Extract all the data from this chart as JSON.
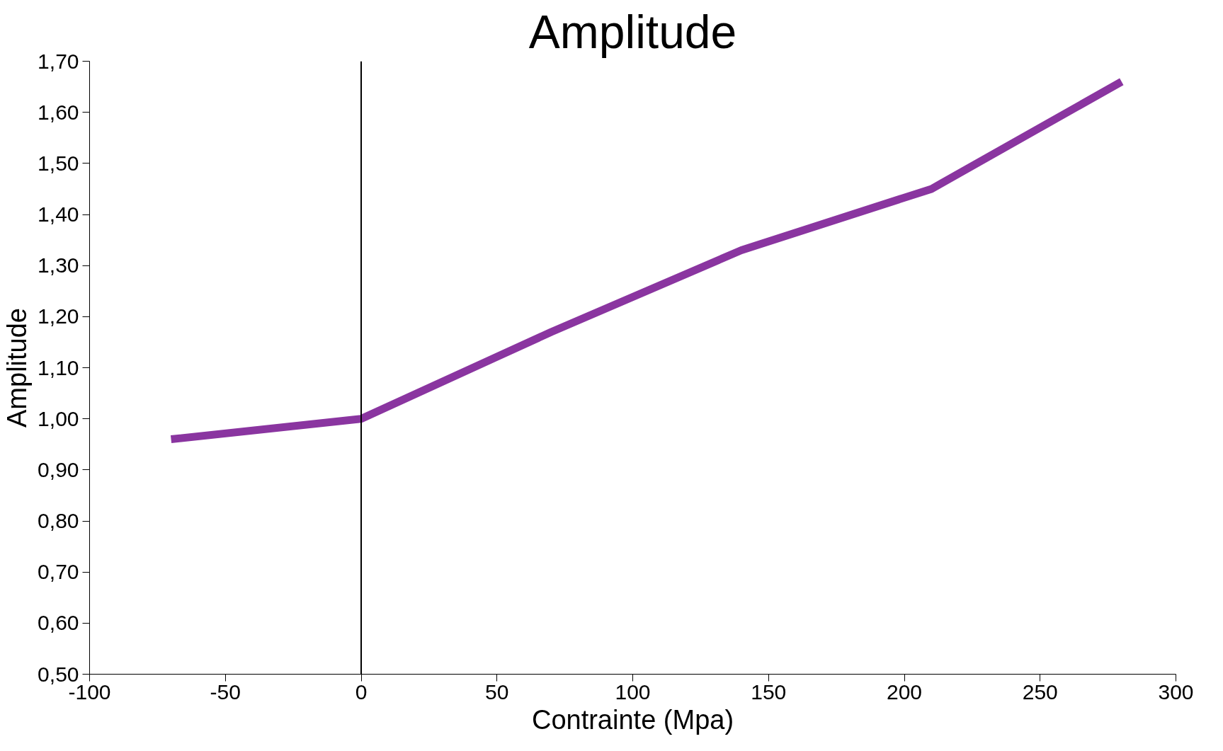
{
  "chart_data": {
    "type": "line",
    "title": "Amplitude",
    "xlabel": "Contrainte (Mpa)",
    "ylabel": "Amplitude",
    "x": [
      -70,
      0,
      70,
      140,
      210,
      280
    ],
    "series": [
      {
        "color": "#8a35a0",
        "values": [
          0.96,
          1.0,
          1.17,
          1.33,
          1.45,
          1.66
        ]
      }
    ],
    "xlim": [
      -100,
      300
    ],
    "xticks": [
      -100,
      -50,
      0,
      50,
      100,
      150,
      200,
      250,
      300
    ],
    "ylim": [
      0.5,
      1.7
    ],
    "yticks": [
      {
        "value": 0.5,
        "label": "0,50"
      },
      {
        "value": 0.6,
        "label": "0,60"
      },
      {
        "value": 0.7,
        "label": "0,70"
      },
      {
        "value": 0.8,
        "label": "0,80"
      },
      {
        "value": 0.9,
        "label": "0,90"
      },
      {
        "value": 1.0,
        "label": "1,00"
      },
      {
        "value": 1.1,
        "label": "1,10"
      },
      {
        "value": 1.2,
        "label": "1,20"
      },
      {
        "value": 1.3,
        "label": "1,30"
      },
      {
        "value": 1.4,
        "label": "1,40"
      },
      {
        "value": 1.5,
        "label": "1,50"
      },
      {
        "value": 1.6,
        "label": "1,60"
      },
      {
        "value": 1.7,
        "label": "1,70"
      }
    ],
    "ref_lines": [
      {
        "axis": "x",
        "value": 0,
        "color": "#000000"
      }
    ],
    "grid": false,
    "marker": "none",
    "line_style": "solid"
  }
}
